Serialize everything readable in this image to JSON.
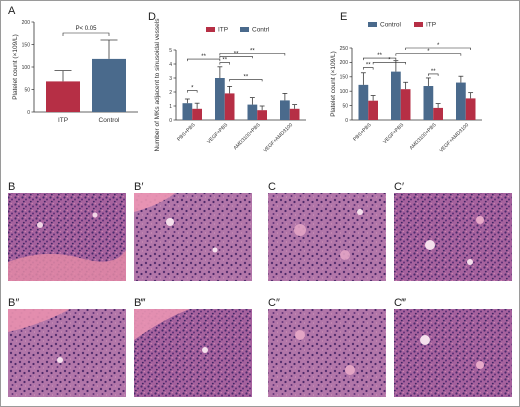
{
  "colors": {
    "itp": "#b62f45",
    "control": "#4a6a8c",
    "error": "#3a3a3a"
  },
  "panels": {
    "A": "A",
    "D": "D",
    "E": "E",
    "B": "B",
    "B1": "B′",
    "B2": "B″",
    "B3": "B‴",
    "C": "C",
    "C1": "C′",
    "C2": "C″",
    "C3": "C‴"
  },
  "chart_data": [
    {
      "id": "A",
      "type": "bar",
      "categories": [
        "ITP",
        "Control"
      ],
      "values": [
        68,
        118
      ],
      "errors": [
        24,
        42
      ],
      "bar_colors": [
        "itp",
        "control"
      ],
      "ylabel": "Platelet count (×109/L)",
      "ylim": [
        0,
        200
      ],
      "yticks": [
        "0",
        "50",
        "100",
        "150",
        "200"
      ],
      "annotations": [
        {
          "text": "P< 0.05"
        }
      ]
    },
    {
      "id": "D",
      "type": "bar",
      "categories": [
        "PBS+PBS",
        "VEGF+PBS",
        "AMD3100+PBS",
        "VEGF+AMD3100"
      ],
      "series": [
        {
          "name": "ITP",
          "color": "itp",
          "values": [
            0.8,
            1.9,
            0.7,
            0.8
          ],
          "errors": [
            0.4,
            0.5,
            0.3,
            0.3
          ]
        },
        {
          "name": "Contrl",
          "color": "control",
          "values": [
            1.2,
            3.0,
            1.1,
            1.4
          ],
          "errors": [
            0.3,
            0.8,
            0.5,
            0.5
          ]
        }
      ],
      "legend_position": "top",
      "ylabel": "Number of MKs adjacent to sinusoidal vessels",
      "ylim": [
        0,
        5
      ],
      "yticks": [
        "0",
        "1",
        "2",
        "3",
        "4",
        "5"
      ],
      "annotations": [
        {
          "text": "*"
        },
        {
          "text": "**"
        },
        {
          "text": "**"
        },
        {
          "text": "**"
        },
        {
          "text": "**"
        },
        {
          "text": "**"
        }
      ]
    },
    {
      "id": "E",
      "type": "bar",
      "categories": [
        "PBS+PBS",
        "VEGF+PBS",
        "AMD3100+PBS",
        "VEGF+AMD3100"
      ],
      "series": [
        {
          "name": "Control",
          "color": "control",
          "values": [
            122,
            168,
            118,
            130
          ],
          "errors": [
            42,
            38,
            28,
            22
          ]
        },
        {
          "name": "ITP",
          "color": "itp",
          "values": [
            67,
            107,
            42,
            75
          ],
          "errors": [
            18,
            24,
            15,
            20
          ]
        }
      ],
      "legend_position": "top",
      "ylabel": "Platelet count (×109/L)",
      "ylim": [
        0,
        250
      ],
      "yticks": [
        "0",
        "50",
        "100",
        "150",
        "200",
        "250"
      ],
      "annotations": [
        {
          "text": "**"
        },
        {
          "text": "*"
        },
        {
          "text": "**"
        },
        {
          "text": "*"
        },
        {
          "text": "**"
        },
        {
          "text": "*"
        }
      ]
    }
  ]
}
